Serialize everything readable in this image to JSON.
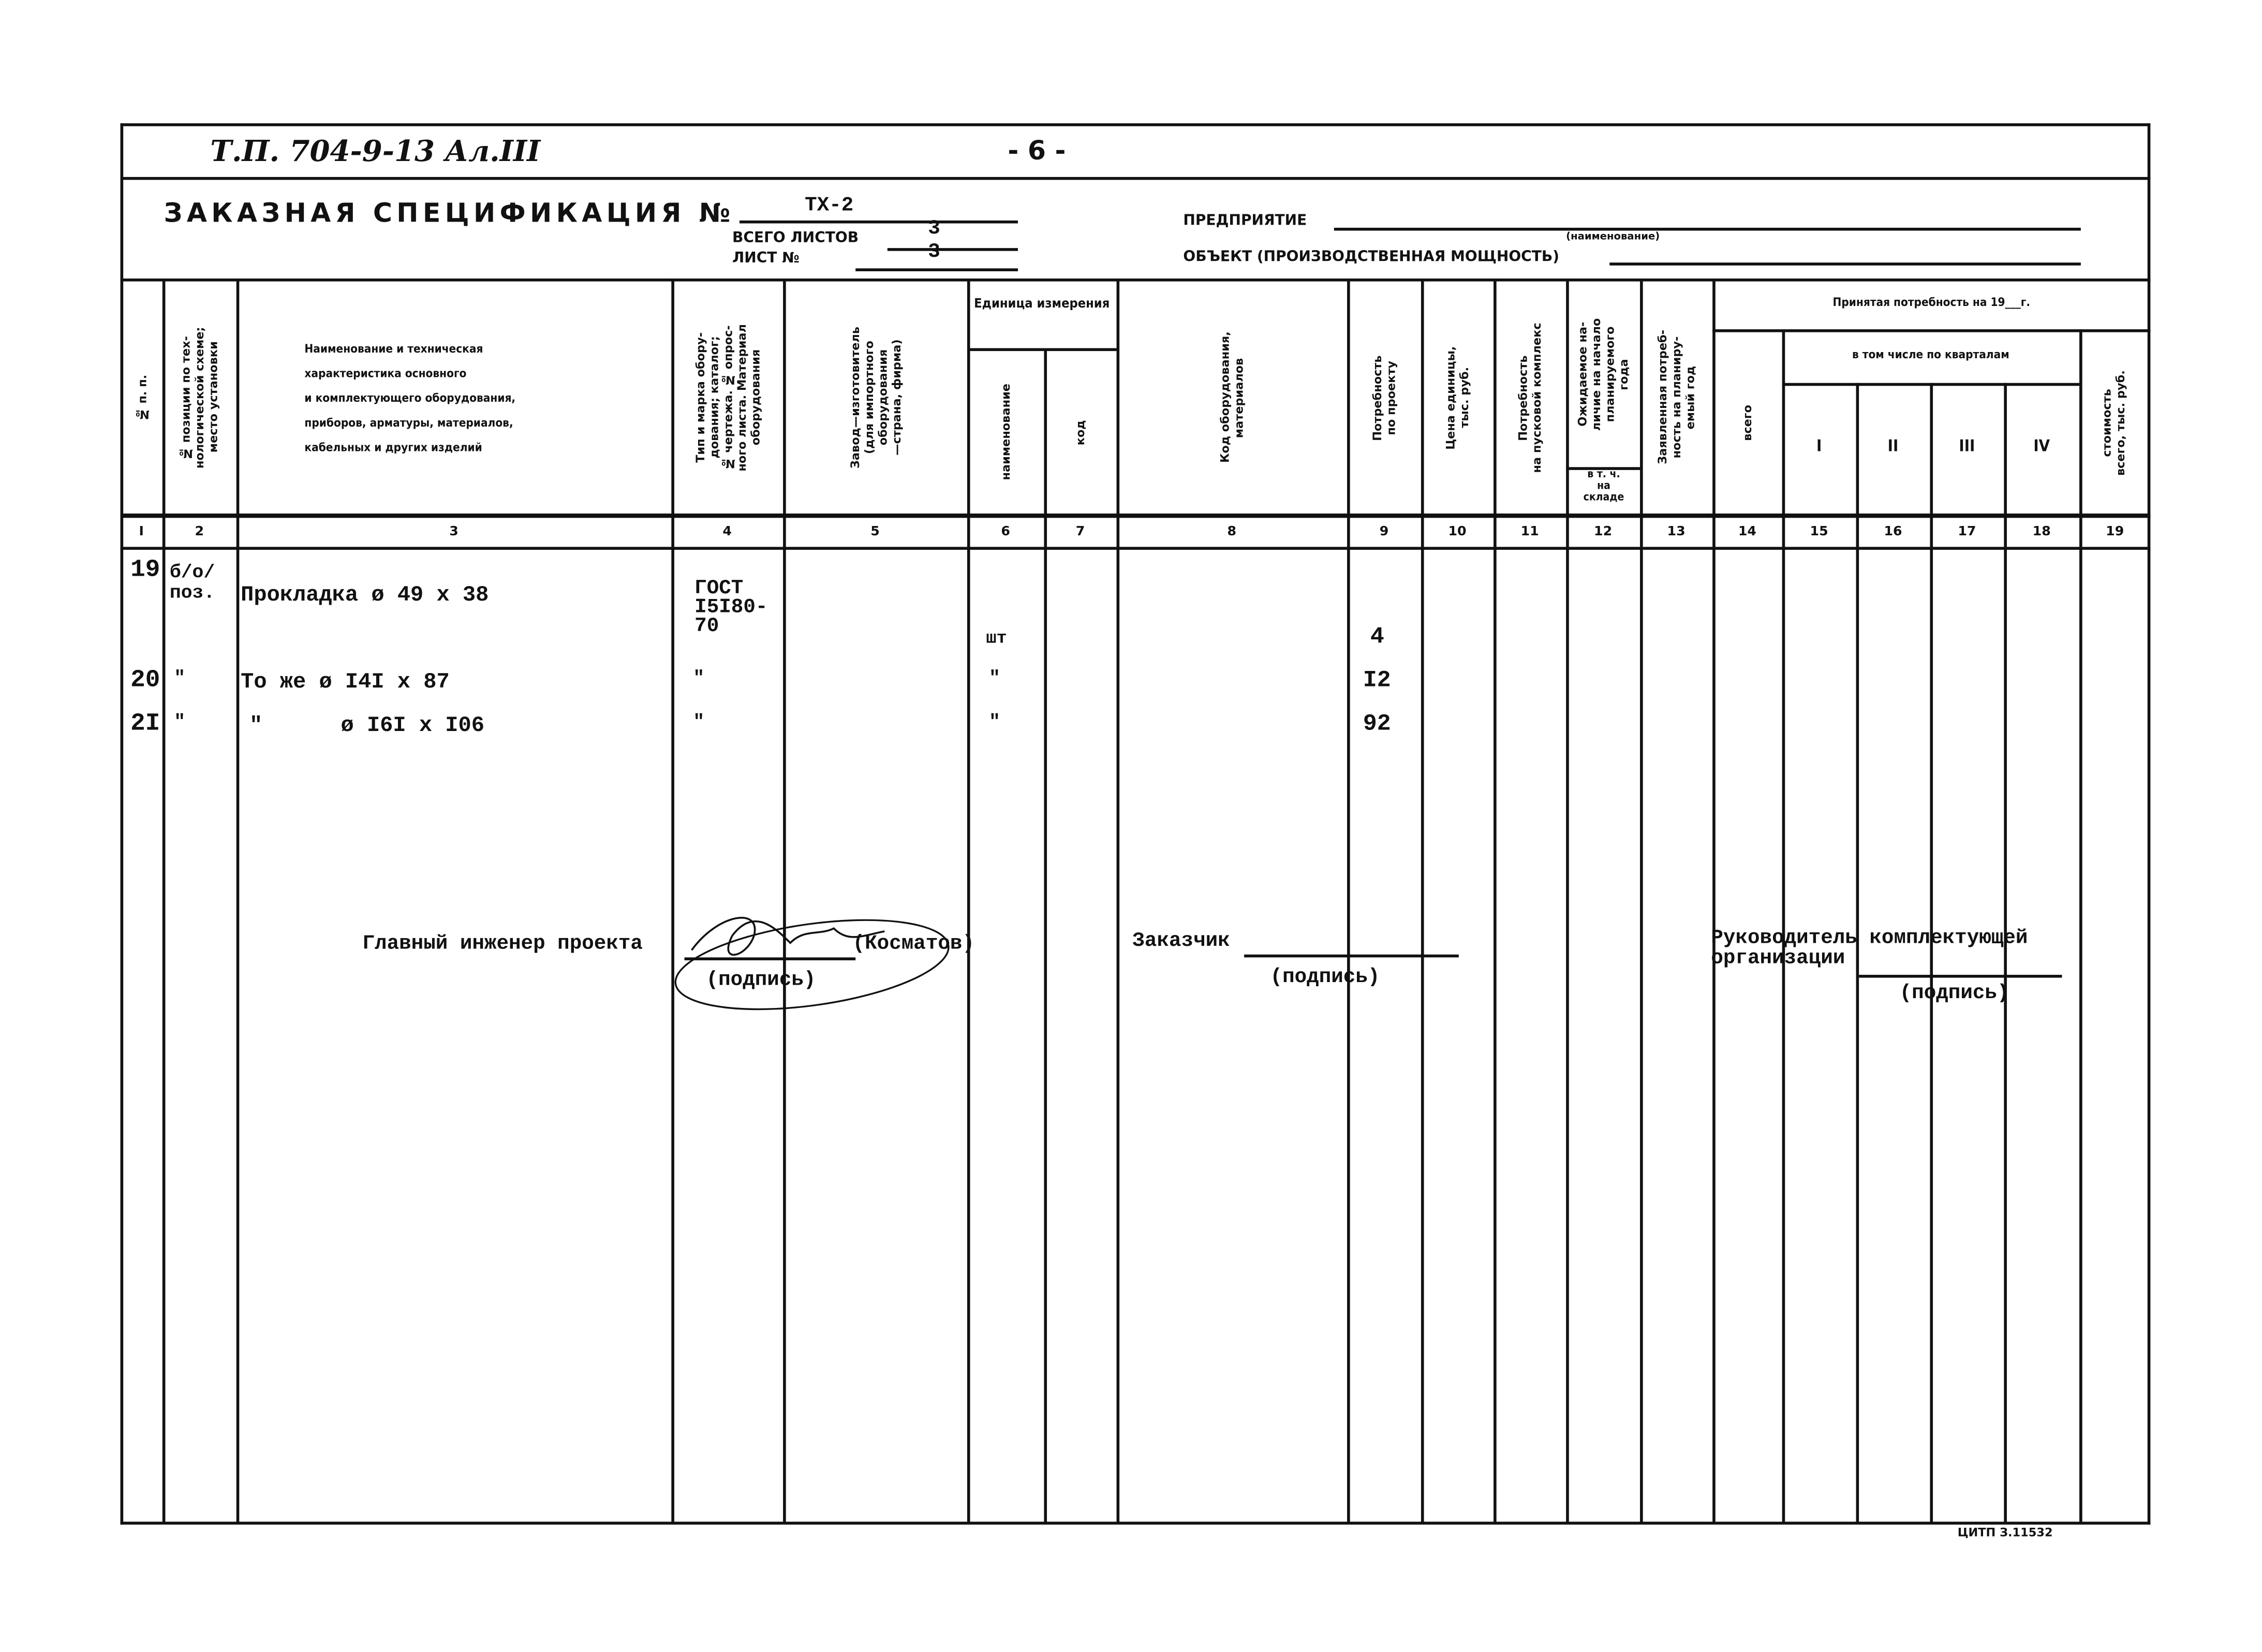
{
  "header": {
    "doc_code": "Т.П. 704-9-13  Ал.III",
    "page_number": "- 6 -",
    "title": "ЗАКАЗНАЯ СПЕЦИФИКАЦИЯ №",
    "spec_number": "ТХ-2",
    "total_sheets_label": "ВСЕГО ЛИСТОВ",
    "total_sheets": "3",
    "sheet_label": "ЛИСТ №",
    "sheet": "3",
    "enterprise_label": "ПРЕДПРИЯТИЕ",
    "enterprise_hint": "(наименование)",
    "object_label": "ОБЪЕКТ (ПРОИЗВОДСТВЕННАЯ МОЩНОСТЬ)"
  },
  "columns": {
    "c1": "№ п. п.",
    "c2": "№ позиции по тех-\nнологической схеме;\nместо установки",
    "c3": [
      "Наименование и техническая",
      "характеристика основного",
      "и комплектующего оборудования,",
      "приборов, арматуры, материалов,",
      "кабельных и других изделий"
    ],
    "c4": "Тип и марка обору-\nдования; каталог;\n№ чертежа. № опрос-\nного листа. Материал\nоборудования",
    "c5": "Завод—изготовитель\n(для импортного\nоборудования\n—страна, фирма)",
    "unit_group": "Единица измерения",
    "c6": "наименование",
    "c7": "код",
    "c8": "Код оборудования,\nматериалов",
    "c9": "Потребность\nпо проекту",
    "c10": "Цена единицы,\nтыс. руб.",
    "c11": "Потребность\nна пусковой комплекс",
    "c12": "Ожидаемое на-\nличие на начало\nпланируемого\nгода",
    "c12_sub": "в т. ч.\nна\nскладе",
    "c13": "Заявленная потреб-\nность на планиру-\nемый год",
    "accepted_group": "Принятая потребность на 19___г.",
    "c14": "всего",
    "quarters_group": "в том числе по кварталам",
    "quarters": [
      "I",
      "II",
      "III",
      "IV"
    ],
    "c19": "стоимость\nвсего, тыс. руб.",
    "numbers": [
      "I",
      "2",
      "3",
      "4",
      "5",
      "6",
      "7",
      "8",
      "9",
      "10",
      "11",
      "12",
      "13",
      "14",
      "15",
      "16",
      "17",
      "18",
      "19"
    ]
  },
  "rows": [
    {
      "num": "19",
      "pos": "б/о/\nпоз.",
      "name": "Прокладка ø 49 х 38",
      "type": "ГОСТ\nI5I80-\n70",
      "unit": "шт",
      "qty": "4"
    },
    {
      "num": "20",
      "pos": "\"",
      "name": "То же ø I4I х 87",
      "type": "\"",
      "unit": "\"",
      "qty": "I2"
    },
    {
      "num": "2I",
      "pos": "\"",
      "name": "\"      ø I6I х I06",
      "type": "\"",
      "unit": "\"",
      "qty": "92"
    }
  ],
  "signatures": {
    "chief_engineer": "Главный инженер проекта",
    "chief_name": "(Косматов)",
    "signature_hint": "(подпись)",
    "customer": "Заказчик",
    "customer_hint": "(подпись)",
    "supplier": "Руководитель комплектующей\nорганизации",
    "supplier_hint": "(подпись)"
  },
  "footer": {
    "stamp": "ЦИТП  З.11532"
  }
}
